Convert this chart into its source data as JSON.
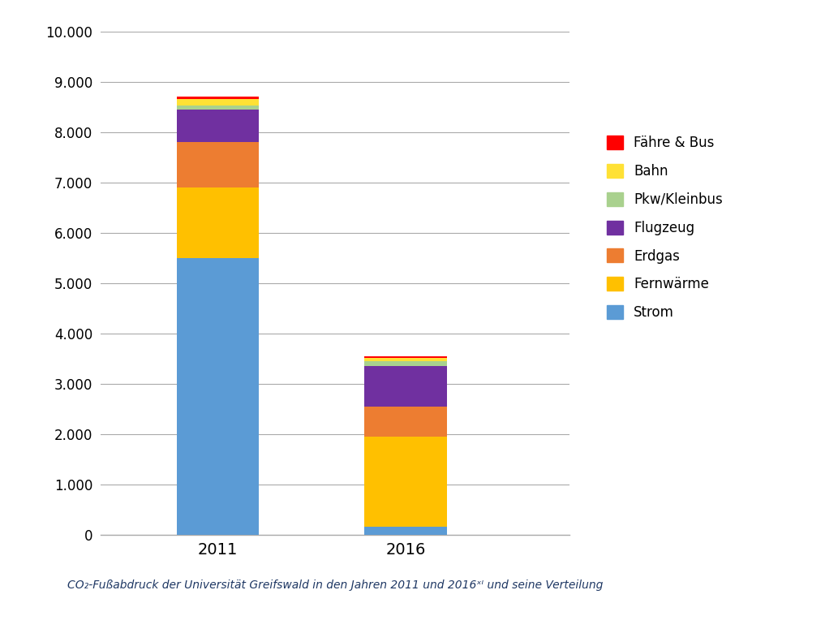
{
  "categories": [
    "2011",
    "2016"
  ],
  "series": [
    {
      "label": "Strom",
      "color": "#5B9BD5",
      "values": [
        5500,
        150
      ]
    },
    {
      "label": "Fernwärme",
      "color": "#FFC000",
      "values": [
        1400,
        1800
      ]
    },
    {
      "label": "Erdgas",
      "color": "#ED7D31",
      "values": [
        900,
        600
      ]
    },
    {
      "label": "Flugzeug",
      "color": "#7030A0",
      "values": [
        640,
        800
      ]
    },
    {
      "label": "Pkw/Kleinbus",
      "color": "#A9D18E",
      "values": [
        90,
        100
      ]
    },
    {
      "label": "Bahn",
      "color": "#FFE135",
      "values": [
        120,
        55
      ]
    },
    {
      "label": "Fähre & Bus",
      "color": "#FF0000",
      "values": [
        50,
        45
      ]
    }
  ],
  "ylim": [
    0,
    10000
  ],
  "yticks": [
    0,
    1000,
    2000,
    3000,
    4000,
    5000,
    6000,
    7000,
    8000,
    9000,
    10000
  ],
  "bar_width": 0.35,
  "x_positions": [
    0,
    0.8
  ],
  "caption_line1": "CO₂-Fußabdruck der Universität Greifswald in den Jahren 2011 und 2016ˣᴵ und seine Verteilung",
  "caption_color": "#1F3864",
  "background_color": "#FFFFFF"
}
